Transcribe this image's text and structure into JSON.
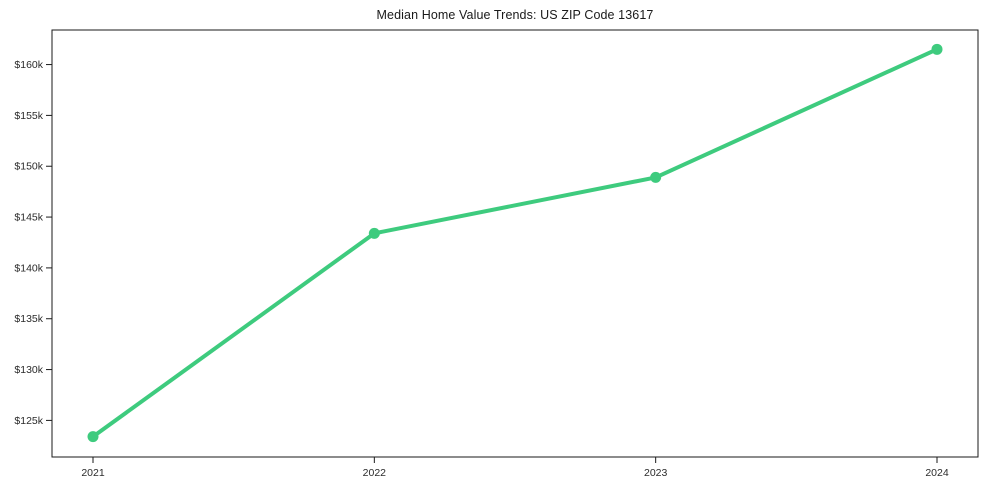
{
  "chart_data": {
    "type": "line",
    "title": "Median Home Value Trends: US ZIP Code 13617",
    "x": [
      "2021",
      "2022",
      "2023",
      "2024"
    ],
    "series": [
      {
        "name": "Median Home Value",
        "values": [
          123400,
          143400,
          148900,
          161500
        ]
      }
    ],
    "xlabel": "",
    "ylabel": "",
    "ylim": [
      121400,
      163400
    ],
    "yticks": [
      {
        "value": 125000,
        "label": "$125k"
      },
      {
        "value": 130000,
        "label": "$130k"
      },
      {
        "value": 135000,
        "label": "$135k"
      },
      {
        "value": 140000,
        "label": "$140k"
      },
      {
        "value": 145000,
        "label": "$145k"
      },
      {
        "value": 150000,
        "label": "$150k"
      },
      {
        "value": 155000,
        "label": "$155k"
      },
      {
        "value": 160000,
        "label": "$160k"
      }
    ],
    "grid": false,
    "legend": null,
    "marker": "circle",
    "colors": {
      "line": "#3ecb7e",
      "marker": "#3ecb7e",
      "spine": "#1a1a1a",
      "tick_label": "#2b2b2b",
      "title": "#1a1a1a",
      "background": "#ffffff"
    }
  }
}
